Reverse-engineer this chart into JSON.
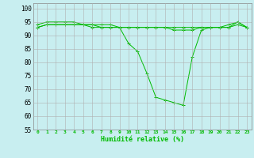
{
  "title": "",
  "xlabel": "Humidité relative (%)",
  "ylabel": "",
  "background_color": "#c8eef0",
  "grid_color": "#b0b0b0",
  "line_color": "#00bb00",
  "xlim": [
    -0.5,
    23.5
  ],
  "ylim": [
    55,
    102
  ],
  "yticks": [
    55,
    60,
    65,
    70,
    75,
    80,
    85,
    90,
    95,
    100
  ],
  "xticks": [
    0,
    1,
    2,
    3,
    4,
    5,
    6,
    7,
    8,
    9,
    10,
    11,
    12,
    13,
    14,
    15,
    16,
    17,
    18,
    19,
    20,
    21,
    22,
    23
  ],
  "series": {
    "line1": [
      93,
      94,
      94,
      94,
      94,
      94,
      94,
      93,
      93,
      93,
      87,
      84,
      76,
      67,
      66,
      65,
      64,
      82,
      92,
      93,
      93,
      94,
      95,
      93
    ],
    "line2": [
      94,
      95,
      95,
      95,
      95,
      94,
      94,
      94,
      94,
      93,
      93,
      93,
      93,
      93,
      93,
      93,
      93,
      93,
      93,
      93,
      93,
      93,
      95,
      93
    ],
    "line3": [
      93,
      94,
      94,
      94,
      94,
      94,
      93,
      93,
      93,
      93,
      93,
      93,
      93,
      93,
      93,
      92,
      92,
      92,
      93,
      93,
      93,
      93,
      94,
      93
    ]
  }
}
